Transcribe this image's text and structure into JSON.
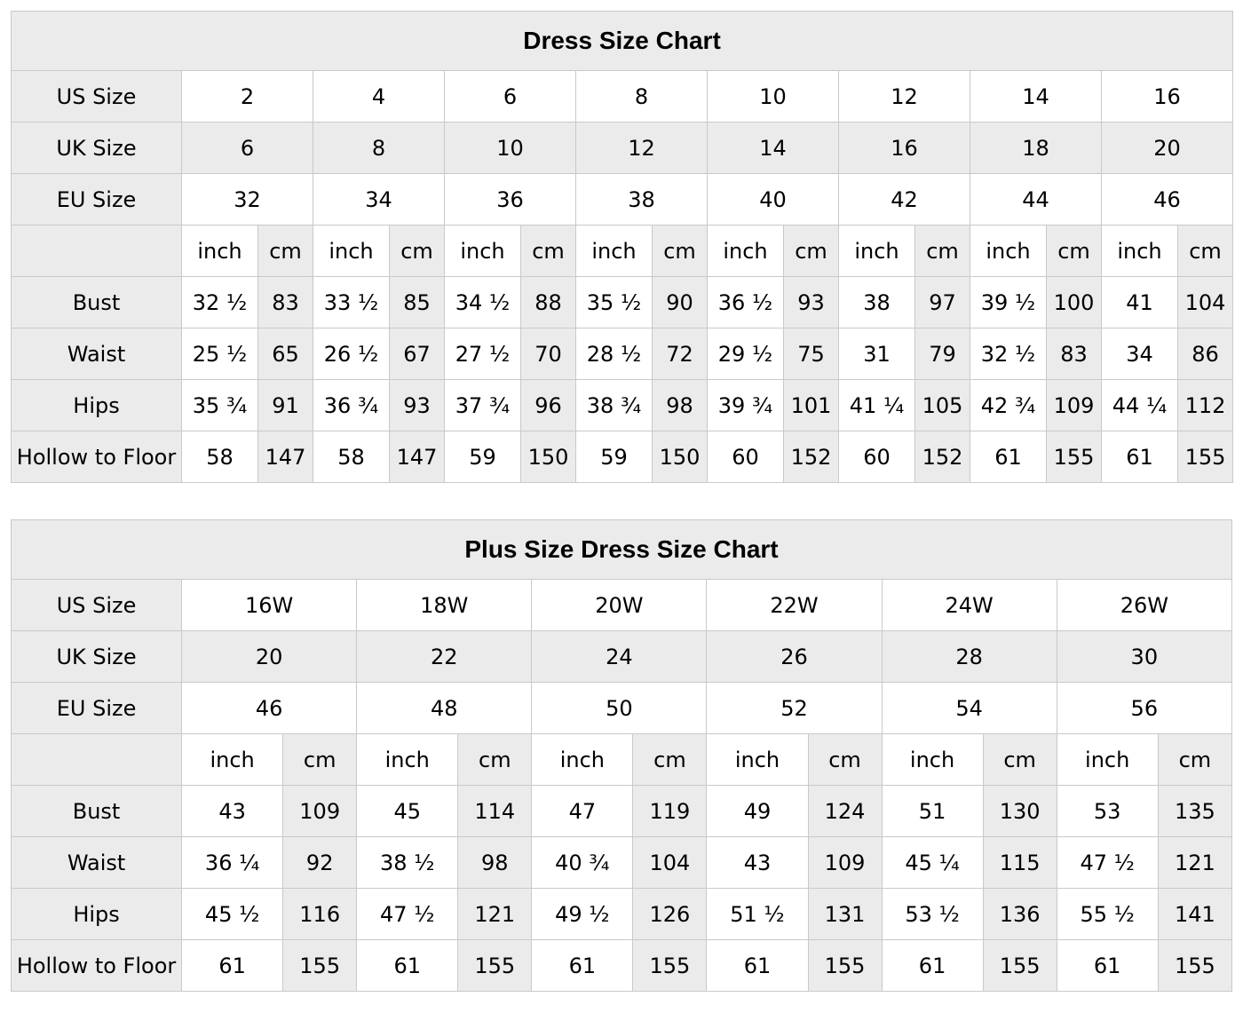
{
  "colors": {
    "shade": "#ebebeb",
    "inner_border": "#c9c9c9",
    "outer_border": "#a8a8a8",
    "text": "#000000",
    "background": "#ffffff"
  },
  "chart_data": [
    {
      "type": "table",
      "title": "Dress Size Chart",
      "size_rows": [
        {
          "label": "US Size",
          "shaded": false,
          "values": [
            "2",
            "4",
            "6",
            "8",
            "10",
            "12",
            "14",
            "16"
          ]
        },
        {
          "label": "UK Size",
          "shaded": true,
          "values": [
            "6",
            "8",
            "10",
            "12",
            "14",
            "16",
            "18",
            "20"
          ]
        },
        {
          "label": "EU Size",
          "shaded": false,
          "values": [
            "32",
            "34",
            "36",
            "38",
            "40",
            "42",
            "44",
            "46"
          ]
        }
      ],
      "unit_row": {
        "label": "",
        "units": [
          "inch",
          "cm"
        ]
      },
      "measure_rows": [
        {
          "label": "Bust",
          "pairs": [
            [
              "32 ½",
              "83"
            ],
            [
              "33 ½",
              "85"
            ],
            [
              "34 ½",
              "88"
            ],
            [
              "35 ½",
              "90"
            ],
            [
              "36 ½",
              "93"
            ],
            [
              "38",
              "97"
            ],
            [
              "39 ½",
              "100"
            ],
            [
              "41",
              "104"
            ]
          ]
        },
        {
          "label": "Waist",
          "pairs": [
            [
              "25 ½",
              "65"
            ],
            [
              "26 ½",
              "67"
            ],
            [
              "27 ½",
              "70"
            ],
            [
              "28 ½",
              "72"
            ],
            [
              "29 ½",
              "75"
            ],
            [
              "31",
              "79"
            ],
            [
              "32 ½",
              "83"
            ],
            [
              "34",
              "86"
            ]
          ]
        },
        {
          "label": "Hips",
          "pairs": [
            [
              "35 ¾",
              "91"
            ],
            [
              "36 ¾",
              "93"
            ],
            [
              "37 ¾",
              "96"
            ],
            [
              "38 ¾",
              "98"
            ],
            [
              "39 ¾",
              "101"
            ],
            [
              "41 ¼",
              "105"
            ],
            [
              "42 ¾",
              "109"
            ],
            [
              "44 ¼",
              "112"
            ]
          ]
        },
        {
          "label": "Hollow to Floor",
          "pairs": [
            [
              "58",
              "147"
            ],
            [
              "58",
              "147"
            ],
            [
              "59",
              "150"
            ],
            [
              "59",
              "150"
            ],
            [
              "60",
              "152"
            ],
            [
              "60",
              "152"
            ],
            [
              "61",
              "155"
            ],
            [
              "61",
              "155"
            ]
          ]
        }
      ]
    },
    {
      "type": "table",
      "title": "Plus Size Dress Size Chart",
      "size_rows": [
        {
          "label": "US Size",
          "shaded": false,
          "values": [
            "16W",
            "18W",
            "20W",
            "22W",
            "24W",
            "26W"
          ]
        },
        {
          "label": "UK Size",
          "shaded": true,
          "values": [
            "20",
            "22",
            "24",
            "26",
            "28",
            "30"
          ]
        },
        {
          "label": "EU Size",
          "shaded": false,
          "values": [
            "46",
            "48",
            "50",
            "52",
            "54",
            "56"
          ]
        }
      ],
      "unit_row": {
        "label": "",
        "units": [
          "inch",
          "cm"
        ]
      },
      "measure_rows": [
        {
          "label": "Bust",
          "pairs": [
            [
              "43",
              "109"
            ],
            [
              "45",
              "114"
            ],
            [
              "47",
              "119"
            ],
            [
              "49",
              "124"
            ],
            [
              "51",
              "130"
            ],
            [
              "53",
              "135"
            ]
          ]
        },
        {
          "label": "Waist",
          "pairs": [
            [
              "36 ¼",
              "92"
            ],
            [
              "38 ½",
              "98"
            ],
            [
              "40 ¾",
              "104"
            ],
            [
              "43",
              "109"
            ],
            [
              "45 ¼",
              "115"
            ],
            [
              "47 ½",
              "121"
            ]
          ]
        },
        {
          "label": "Hips",
          "pairs": [
            [
              "45 ½",
              "116"
            ],
            [
              "47 ½",
              "121"
            ],
            [
              "49 ½",
              "126"
            ],
            [
              "51 ½",
              "131"
            ],
            [
              "53 ½",
              "136"
            ],
            [
              "55 ½",
              "141"
            ]
          ]
        },
        {
          "label": "Hollow to Floor",
          "pairs": [
            [
              "61",
              "155"
            ],
            [
              "61",
              "155"
            ],
            [
              "61",
              "155"
            ],
            [
              "61",
              "155"
            ],
            [
              "61",
              "155"
            ],
            [
              "61",
              "155"
            ]
          ]
        }
      ]
    }
  ]
}
